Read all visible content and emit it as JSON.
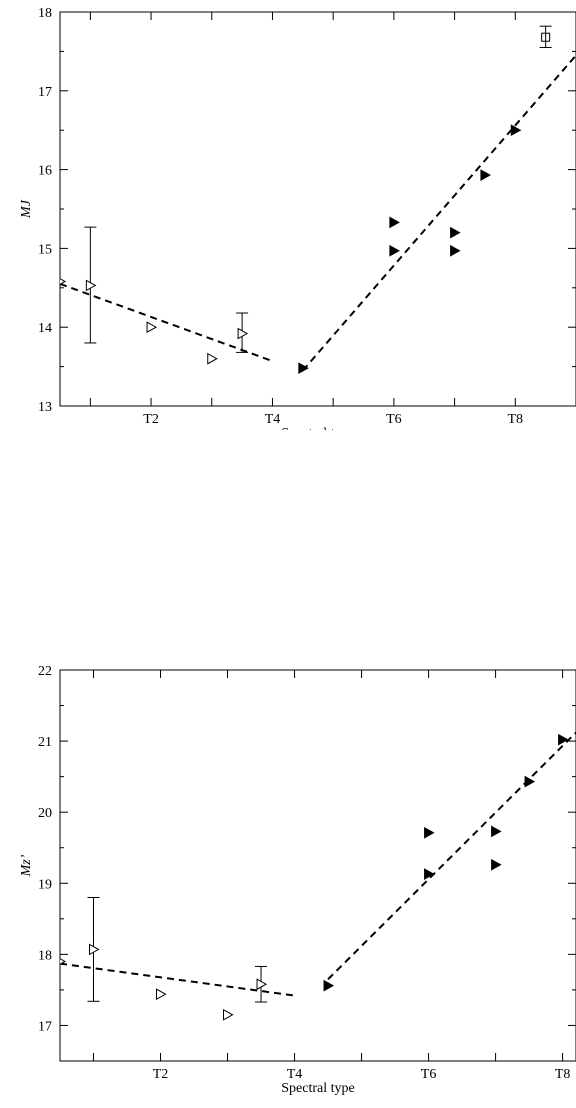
{
  "chart_data": [
    {
      "type": "scatter",
      "xlabel": "Spectral type",
      "ylabel": "MJ",
      "xlim": [
        0.5,
        9.0
      ],
      "ylim": [
        13,
        18
      ],
      "x_ticks": [
        {
          "value": 2,
          "label": "T2"
        },
        {
          "value": 4,
          "label": "T4"
        },
        {
          "value": 6,
          "label": "T6"
        },
        {
          "value": 8,
          "label": "T8"
        }
      ],
      "y_ticks": [
        13,
        14,
        15,
        16,
        17,
        18
      ],
      "series": [
        {
          "marker": "open-triangle",
          "points": [
            [
              0.5,
              14.58
            ],
            [
              1.0,
              14.53
            ],
            [
              2.0,
              14.0
            ],
            [
              3.0,
              13.6
            ],
            [
              3.5,
              13.92
            ]
          ]
        },
        {
          "marker": "filled-triangle",
          "points": [
            [
              4.5,
              13.48
            ],
            [
              6.0,
              15.33
            ],
            [
              6.0,
              14.97
            ],
            [
              7.0,
              15.2
            ],
            [
              7.0,
              14.97
            ],
            [
              7.5,
              15.93
            ],
            [
              8.0,
              16.5
            ]
          ]
        },
        {
          "marker": "open-square",
          "points": [
            [
              8.5,
              17.68
            ]
          ]
        }
      ],
      "error_bars": [
        [
          1.0,
          13.8,
          15.27
        ],
        [
          3.5,
          13.68,
          14.18
        ],
        [
          8.5,
          17.55,
          17.82
        ]
      ],
      "fits": [
        [
          [
            0.5,
            14.55
          ],
          [
            4.0,
            13.57
          ]
        ],
        [
          [
            4.5,
            13.45
          ],
          [
            9.0,
            17.45
          ]
        ]
      ]
    },
    {
      "type": "scatter",
      "xlabel": "Spectral type",
      "ylabel": "Mz’",
      "xlim": [
        0.5,
        8.2
      ],
      "ylim": [
        16.5,
        22
      ],
      "x_ticks": [
        {
          "value": 2,
          "label": "T2"
        },
        {
          "value": 4,
          "label": "T4"
        },
        {
          "value": 6,
          "label": "T6"
        },
        {
          "value": 8,
          "label": "T8"
        }
      ],
      "y_ticks": [
        17,
        18,
        19,
        20,
        21,
        22
      ],
      "series": [
        {
          "marker": "open-triangle",
          "points": [
            [
              0.5,
              17.9
            ],
            [
              1.0,
              18.07
            ],
            [
              2.0,
              17.44
            ],
            [
              3.0,
              17.15
            ],
            [
              3.5,
              17.58
            ]
          ]
        },
        {
          "marker": "filled-triangle",
          "points": [
            [
              4.5,
              17.56
            ],
            [
              6.0,
              19.71
            ],
            [
              6.0,
              19.13
            ],
            [
              7.0,
              19.73
            ],
            [
              7.0,
              19.26
            ],
            [
              7.5,
              20.43
            ],
            [
              8.0,
              21.02
            ]
          ]
        }
      ],
      "error_bars": [
        [
          1.0,
          17.34,
          18.8
        ],
        [
          3.5,
          17.33,
          17.83
        ]
      ],
      "fits": [
        [
          [
            0.5,
            17.87
          ],
          [
            4.0,
            17.42
          ]
        ],
        [
          [
            4.5,
            17.65
          ],
          [
            8.2,
            21.12
          ]
        ]
      ]
    }
  ]
}
